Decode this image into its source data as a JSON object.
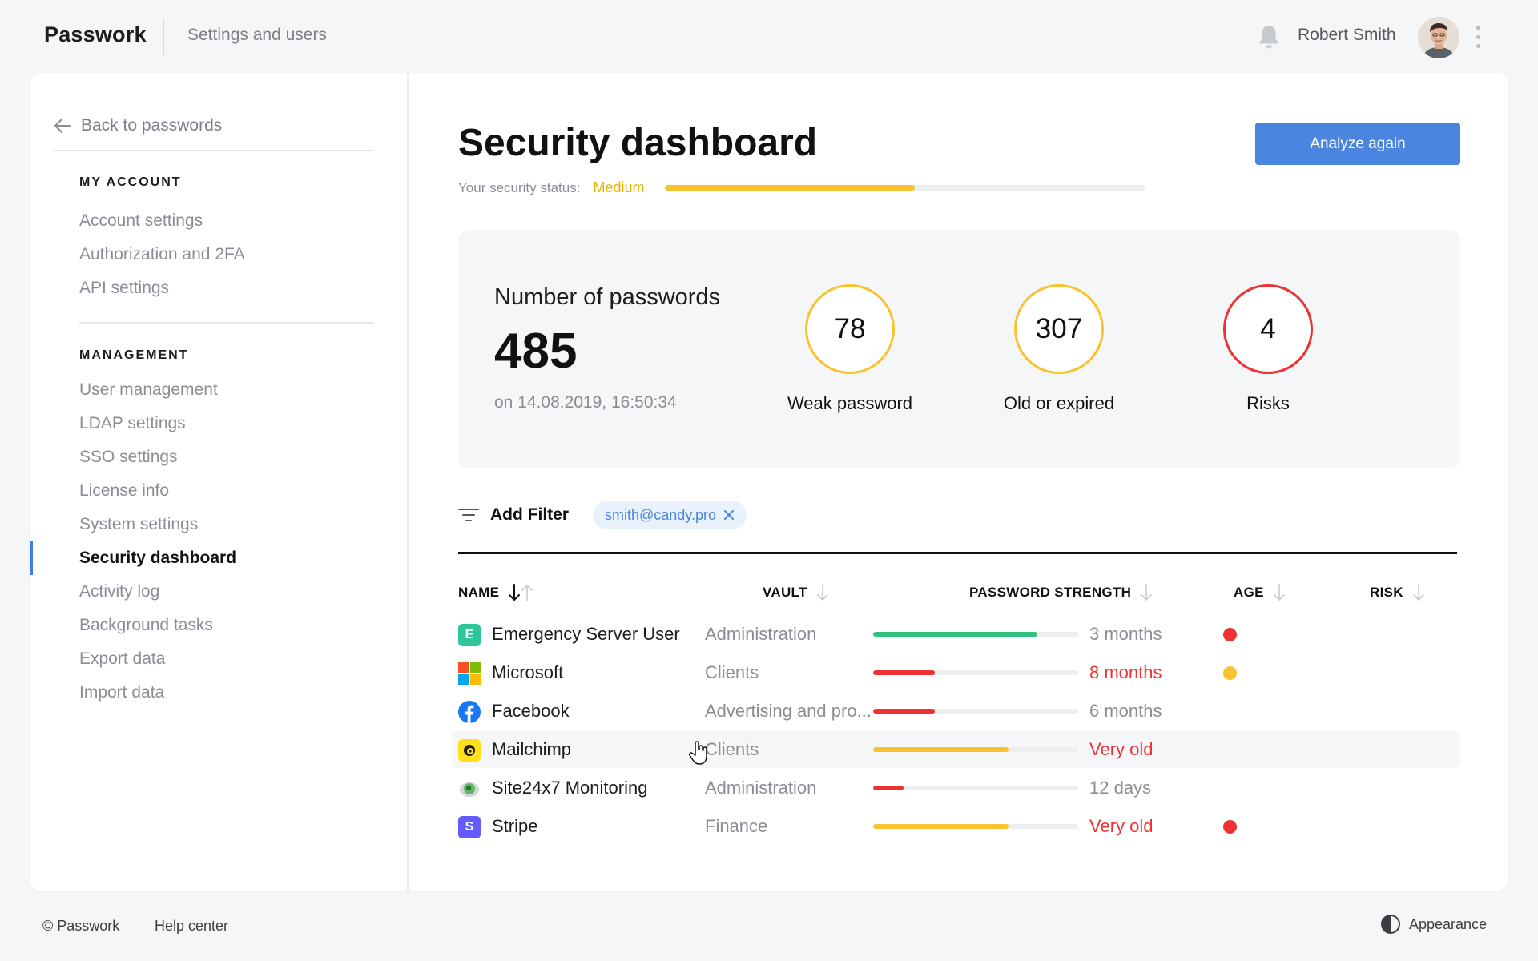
{
  "header": {
    "brand": "Passwork",
    "section": "Settings and users",
    "user_name": "Robert Smith"
  },
  "sidebar": {
    "back_label": "Back to passwords",
    "groups": [
      {
        "heading": "MY ACCOUNT",
        "items": [
          "Account settings",
          "Authorization and 2FA",
          "API settings"
        ]
      },
      {
        "heading": "MANAGEMENT",
        "items": [
          "User management",
          "LDAP settings",
          "SSO settings",
          "License info",
          "System settings",
          "Security dashboard",
          "Activity log",
          "Background tasks",
          "Export data",
          "Import data"
        ]
      }
    ],
    "active_item": "Security dashboard"
  },
  "main": {
    "title": "Security dashboard",
    "analyze_label": "Analyze again",
    "status_label": "Your security status:",
    "status_value": "Medium",
    "status_level": 0.52,
    "stats": {
      "label": "Number of passwords",
      "total": "485",
      "date": "on 14.08.2019, 16:50:34",
      "metrics": [
        {
          "value": "78",
          "label": "Weak password",
          "color": "#f8c230"
        },
        {
          "value": "307",
          "label": "Old or expired",
          "color": "#f8c230"
        },
        {
          "value": "4",
          "label": "Risks",
          "color": "#ee3232"
        }
      ]
    },
    "filter": {
      "add_label": "Add Filter",
      "chip": "smith@candy.pro"
    },
    "table": {
      "columns": [
        "NAME",
        "VAULT",
        "PASSWORD STRENGTH",
        "AGE",
        "RISK"
      ],
      "rows": [
        {
          "icon": "emergency-server-user-icon",
          "icon_letter": "E",
          "name": "Emergency Server User",
          "vault": "Administration",
          "strength": 0.8,
          "strength_color": "#2ec27e",
          "age": "3 months",
          "age_warn": false,
          "risk_color": "#ee3232"
        },
        {
          "icon": "microsoft-logo-icon",
          "icon_letter": "",
          "name": "Microsoft",
          "vault": "Clients",
          "strength": 0.3,
          "strength_color": "#ee3232",
          "age": "8 months",
          "age_warn": true,
          "risk_color": "#f8c230"
        },
        {
          "icon": "facebook-logo-icon",
          "icon_letter": "",
          "name": "Facebook",
          "vault": "Advertising and pro...",
          "strength": 0.3,
          "strength_color": "#ee3232",
          "age": "6 months",
          "age_warn": false,
          "risk_color": ""
        },
        {
          "icon": "mailchimp-logo-icon",
          "icon_letter": "",
          "name": "Mailchimp",
          "vault": "Clients",
          "strength": 0.66,
          "strength_color": "#f8c230",
          "age": "Very old",
          "age_warn": true,
          "risk_color": ""
        },
        {
          "icon": "site24x7-logo-icon",
          "icon_letter": "",
          "name": "Site24x7 Monitoring",
          "vault": "Administration",
          "strength": 0.15,
          "strength_color": "#ee3232",
          "age": "12 days",
          "age_warn": false,
          "risk_color": ""
        },
        {
          "icon": "stripe-logo-icon",
          "icon_letter": "S",
          "name": "Stripe",
          "vault": "Finance",
          "strength": 0.66,
          "strength_color": "#f8c230",
          "age": "Very old",
          "age_warn": true,
          "risk_color": "#ee3232"
        }
      ]
    }
  },
  "footer": {
    "copyright": "© Passwork",
    "help": "Help center",
    "appearance": "Appearance"
  }
}
